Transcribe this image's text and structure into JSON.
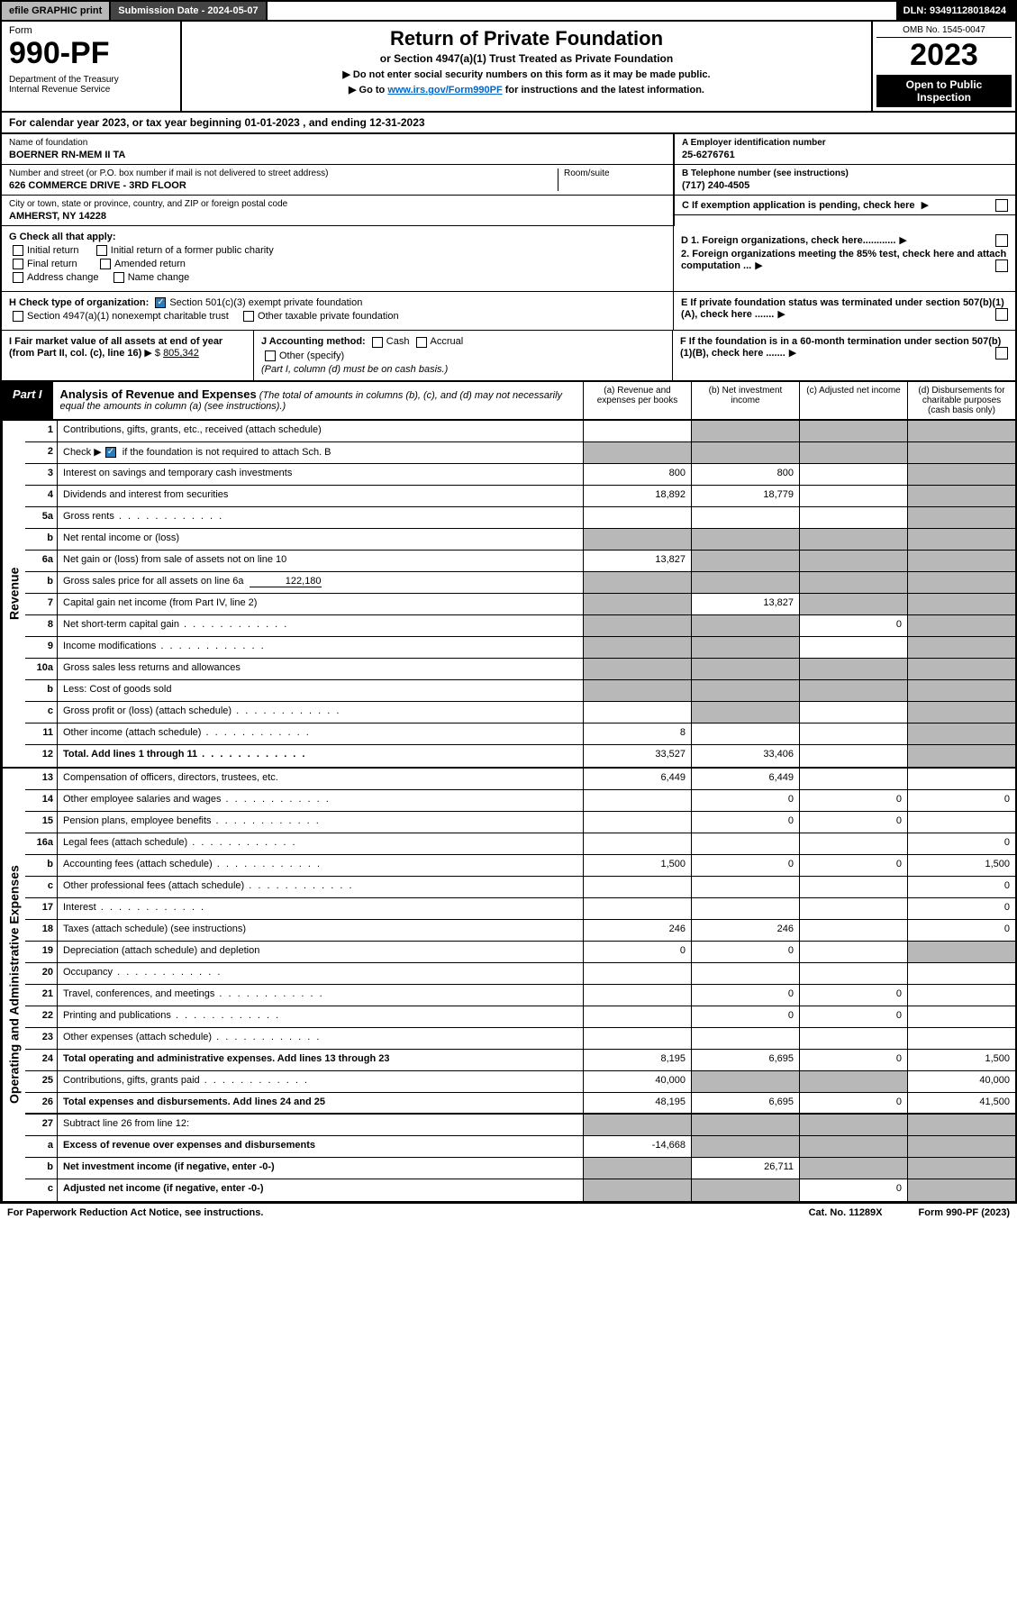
{
  "topbar": {
    "efile": "efile GRAPHIC print",
    "subdate_label": "Submission Date - 2024-05-07",
    "dln": "DLN: 93491128018424"
  },
  "header": {
    "form_label": "Form",
    "form_number": "990-PF",
    "dept": "Department of the Treasury\nInternal Revenue Service",
    "title": "Return of Private Foundation",
    "subtitle": "or Section 4947(a)(1) Trust Treated as Private Foundation",
    "instr1": "▶ Do not enter social security numbers on this form as it may be made public.",
    "instr2_pre": "▶ Go to ",
    "instr2_link": "www.irs.gov/Form990PF",
    "instr2_post": " for instructions and the latest information.",
    "omb": "OMB No. 1545-0047",
    "year": "2023",
    "open_public": "Open to Public Inspection"
  },
  "calyear": "For calendar year 2023, or tax year beginning 01-01-2023                         , and ending 12-31-2023",
  "foundation": {
    "name_label": "Name of foundation",
    "name": "BOERNER RN-MEM II TA",
    "addr_label": "Number and street (or P.O. box number if mail is not delivered to street address)",
    "addr": "626 COMMERCE DRIVE - 3RD FLOOR",
    "room_label": "Room/suite",
    "city_label": "City or town, state or province, country, and ZIP or foreign postal code",
    "city": "AMHERST, NY  14228",
    "ein_label": "A Employer identification number",
    "ein": "25-6276761",
    "phone_label": "B Telephone number (see instructions)",
    "phone": "(717) 240-4505",
    "exempt_label": "C If exemption application is pending, check here"
  },
  "boxG": {
    "label": "G Check all that apply:",
    "initial": "Initial return",
    "initial_former": "Initial return of a former public charity",
    "final": "Final return",
    "amended": "Amended return",
    "addr_change": "Address change",
    "name_change": "Name change"
  },
  "boxD": {
    "d1": "D 1. Foreign organizations, check here............",
    "d2": "2. Foreign organizations meeting the 85% test, check here and attach computation ..."
  },
  "boxH": {
    "label": "H Check type of organization:",
    "opt1": "Section 501(c)(3) exempt private foundation",
    "opt2": "Section 4947(a)(1) nonexempt charitable trust",
    "opt3": "Other taxable private foundation"
  },
  "boxE": "E  If private foundation status was terminated under section 507(b)(1)(A), check here .......",
  "boxI": {
    "label": "I Fair market value of all assets at end of year (from Part II, col. (c), line 16)",
    "amount": "805,342"
  },
  "boxJ": {
    "label": "J Accounting method:",
    "cash": "Cash",
    "accrual": "Accrual",
    "other": "Other (specify)",
    "note": "(Part I, column (d) must be on cash basis.)"
  },
  "boxF": "F  If the foundation is in a 60-month termination under section 507(b)(1)(B), check here .......",
  "part1": {
    "tag": "Part I",
    "title": "Analysis of Revenue and Expenses",
    "note": "(The total of amounts in columns (b), (c), and (d) may not necessarily equal the amounts in column (a) (see instructions).)",
    "col_a": "(a)  Revenue and expenses per books",
    "col_b": "(b)  Net investment income",
    "col_c": "(c)  Adjusted net income",
    "col_d": "(d)  Disbursements for charitable purposes (cash basis only)"
  },
  "sections": {
    "revenue": "Revenue",
    "opex": "Operating and Administrative Expenses"
  },
  "rows": {
    "r1": {
      "num": "1",
      "desc": "Contributions, gifts, grants, etc., received (attach schedule)"
    },
    "r2": {
      "num": "2",
      "desc_pre": "Check ▶",
      "desc_post": " if the foundation is not required to attach Sch. B"
    },
    "r3": {
      "num": "3",
      "desc": "Interest on savings and temporary cash investments",
      "a": "800",
      "b": "800"
    },
    "r4": {
      "num": "4",
      "desc": "Dividends and interest from securities",
      "a": "18,892",
      "b": "18,779"
    },
    "r5a": {
      "num": "5a",
      "desc": "Gross rents"
    },
    "r5b": {
      "num": "b",
      "desc": "Net rental income or (loss)"
    },
    "r6a": {
      "num": "6a",
      "desc": "Net gain or (loss) from sale of assets not on line 10",
      "a": "13,827"
    },
    "r6b": {
      "num": "b",
      "desc": "Gross sales price for all assets on line 6a",
      "inline": "122,180"
    },
    "r7": {
      "num": "7",
      "desc": "Capital gain net income (from Part IV, line 2)",
      "b": "13,827"
    },
    "r8": {
      "num": "8",
      "desc": "Net short-term capital gain",
      "c": "0"
    },
    "r9": {
      "num": "9",
      "desc": "Income modifications"
    },
    "r10a": {
      "num": "10a",
      "desc": "Gross sales less returns and allowances"
    },
    "r10b": {
      "num": "b",
      "desc": "Less: Cost of goods sold"
    },
    "r10c": {
      "num": "c",
      "desc": "Gross profit or (loss) (attach schedule)"
    },
    "r11": {
      "num": "11",
      "desc": "Other income (attach schedule)",
      "a": "8"
    },
    "r12": {
      "num": "12",
      "desc": "Total. Add lines 1 through 11",
      "a": "33,527",
      "b": "33,406"
    },
    "r13": {
      "num": "13",
      "desc": "Compensation of officers, directors, trustees, etc.",
      "a": "6,449",
      "b": "6,449"
    },
    "r14": {
      "num": "14",
      "desc": "Other employee salaries and wages",
      "b": "0",
      "c": "0",
      "d": "0"
    },
    "r15": {
      "num": "15",
      "desc": "Pension plans, employee benefits",
      "b": "0",
      "c": "0"
    },
    "r16a": {
      "num": "16a",
      "desc": "Legal fees (attach schedule)",
      "d": "0"
    },
    "r16b": {
      "num": "b",
      "desc": "Accounting fees (attach schedule)",
      "a": "1,500",
      "b": "0",
      "c": "0",
      "d": "1,500"
    },
    "r16c": {
      "num": "c",
      "desc": "Other professional fees (attach schedule)",
      "d": "0"
    },
    "r17": {
      "num": "17",
      "desc": "Interest",
      "d": "0"
    },
    "r18": {
      "num": "18",
      "desc": "Taxes (attach schedule) (see instructions)",
      "a": "246",
      "b": "246",
      "d": "0"
    },
    "r19": {
      "num": "19",
      "desc": "Depreciation (attach schedule) and depletion",
      "a": "0",
      "b": "0"
    },
    "r20": {
      "num": "20",
      "desc": "Occupancy"
    },
    "r21": {
      "num": "21",
      "desc": "Travel, conferences, and meetings",
      "b": "0",
      "c": "0"
    },
    "r22": {
      "num": "22",
      "desc": "Printing and publications",
      "b": "0",
      "c": "0"
    },
    "r23": {
      "num": "23",
      "desc": "Other expenses (attach schedule)"
    },
    "r24": {
      "num": "24",
      "desc": "Total operating and administrative expenses. Add lines 13 through 23",
      "a": "8,195",
      "b": "6,695",
      "c": "0",
      "d": "1,500"
    },
    "r25": {
      "num": "25",
      "desc": "Contributions, gifts, grants paid",
      "a": "40,000",
      "d": "40,000"
    },
    "r26": {
      "num": "26",
      "desc": "Total expenses and disbursements. Add lines 24 and 25",
      "a": "48,195",
      "b": "6,695",
      "c": "0",
      "d": "41,500"
    },
    "r27": {
      "num": "27",
      "desc": "Subtract line 26 from line 12:"
    },
    "r27a": {
      "num": "a",
      "desc": "Excess of revenue over expenses and disbursements",
      "a": "-14,668"
    },
    "r27b": {
      "num": "b",
      "desc": "Net investment income (if negative, enter -0-)",
      "b": "26,711"
    },
    "r27c": {
      "num": "c",
      "desc": "Adjusted net income (if negative, enter -0-)",
      "c": "0"
    }
  },
  "footer": {
    "left": "For Paperwork Reduction Act Notice, see instructions.",
    "mid": "Cat. No. 11289X",
    "right": "Form 990-PF (2023)"
  }
}
